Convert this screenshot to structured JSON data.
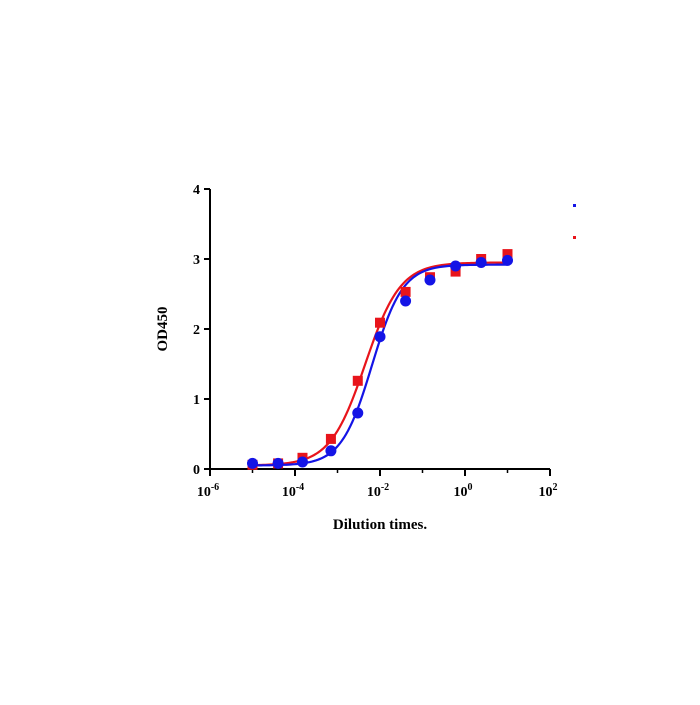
{
  "chart_data": {
    "type": "scatter",
    "title": "",
    "xlabel": "Dilution times.",
    "ylabel": "OD450",
    "x_scale": "log",
    "xlim": [
      1e-06,
      100
    ],
    "ylim": [
      0,
      4
    ],
    "x_ticks": [
      {
        "value": 1e-06,
        "base": "10",
        "exp": "-6"
      },
      {
        "value": 0.0001,
        "base": "10",
        "exp": "-4"
      },
      {
        "value": 0.01,
        "base": "10",
        "exp": "-2"
      },
      {
        "value": 1,
        "base": "10",
        "exp": "0"
      },
      {
        "value": 100,
        "base": "10",
        "exp": "2"
      }
    ],
    "y_ticks": [
      "0",
      "1",
      "2",
      "3",
      "4"
    ],
    "grid": false,
    "legend": {
      "position": "top-right",
      "entries": [
        "",
        ""
      ]
    },
    "series": [
      {
        "name": "",
        "color": "#e8141b",
        "marker": "square",
        "x": [
          1e-05,
          4e-05,
          0.00015,
          0.0007,
          0.003,
          0.01,
          0.04,
          0.15,
          0.6,
          2.4,
          10
        ],
        "y": [
          0.06,
          0.08,
          0.16,
          0.43,
          1.26,
          2.09,
          2.53,
          2.74,
          2.82,
          3.0,
          3.07
        ],
        "fit": {
          "bottom": 0.05,
          "top": 2.95,
          "ec50": 0.0045,
          "hill": 1.05
        }
      },
      {
        "name": "",
        "color": "#1414e6",
        "marker": "circle",
        "x": [
          1e-05,
          4e-05,
          0.00015,
          0.0007,
          0.003,
          0.01,
          0.04,
          0.15,
          0.6,
          2.4,
          10
        ],
        "y": [
          0.08,
          0.08,
          0.1,
          0.26,
          0.8,
          1.89,
          2.4,
          2.7,
          2.9,
          2.95,
          2.98
        ],
        "fit": {
          "bottom": 0.05,
          "top": 2.92,
          "ec50": 0.0065,
          "hill": 1.2
        }
      }
    ]
  }
}
